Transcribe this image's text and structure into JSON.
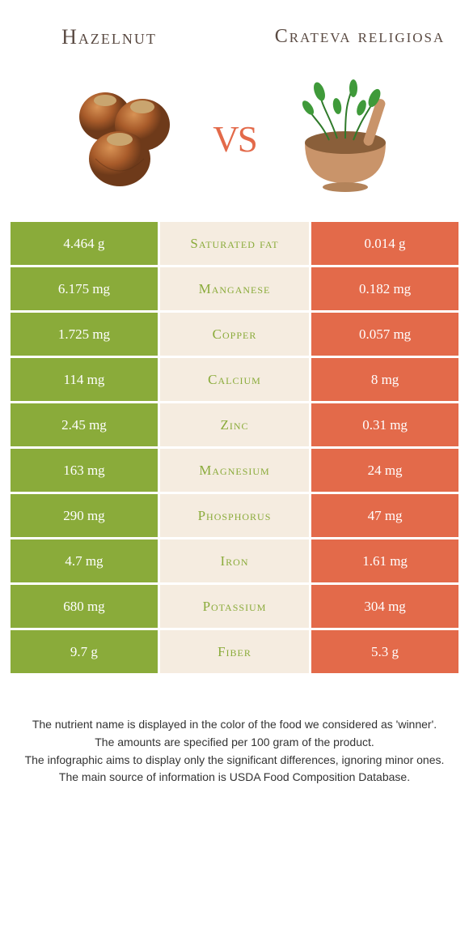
{
  "comparison": {
    "left_title": "Hazelnut",
    "right_title": "Crateva religiosa",
    "vs_label": "vs"
  },
  "colors": {
    "left_bar": "#8aab3a",
    "right_bar": "#e36a4a",
    "mid_bg": "#f5ece0",
    "vs_text": "#e36a4a",
    "title_text": "#5a4a42"
  },
  "rows": [
    {
      "left": "4.464 g",
      "label": "Saturated fat",
      "right": "0.014 g",
      "winner": "left"
    },
    {
      "left": "6.175 mg",
      "label": "Manganese",
      "right": "0.182 mg",
      "winner": "left"
    },
    {
      "left": "1.725 mg",
      "label": "Copper",
      "right": "0.057 mg",
      "winner": "left"
    },
    {
      "left": "114 mg",
      "label": "Calcium",
      "right": "8 mg",
      "winner": "left"
    },
    {
      "left": "2.45 mg",
      "label": "Zinc",
      "right": "0.31 mg",
      "winner": "left"
    },
    {
      "left": "163 mg",
      "label": "Magnesium",
      "right": "24 mg",
      "winner": "left"
    },
    {
      "left": "290 mg",
      "label": "Phosphorus",
      "right": "47 mg",
      "winner": "left"
    },
    {
      "left": "4.7 mg",
      "label": "Iron",
      "right": "1.61 mg",
      "winner": "left"
    },
    {
      "left": "680 mg",
      "label": "Potassium",
      "right": "304 mg",
      "winner": "left"
    },
    {
      "left": "9.7 g",
      "label": "Fiber",
      "right": "5.3 g",
      "winner": "left"
    }
  ],
  "footer": {
    "line1": "The nutrient name is displayed in the color of the food we considered as 'winner'.",
    "line2": "The amounts are specified per 100 gram of the product.",
    "line3": "The infographic aims to display only the significant differences, ignoring minor ones.",
    "line4": "The main source of information is USDA Food Composition Database."
  }
}
